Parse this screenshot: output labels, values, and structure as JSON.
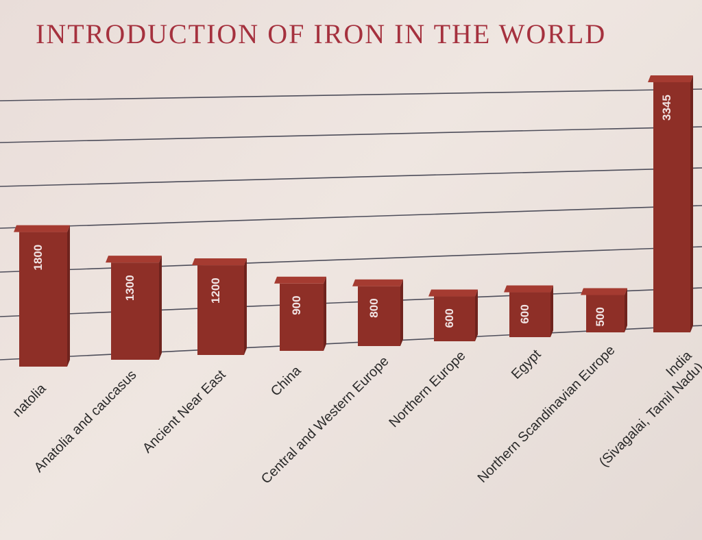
{
  "chart_data": {
    "type": "bar",
    "title": "INTRODUCTION OF IRON IN THE WORLD",
    "categories": [
      "Anatolia",
      "Anatolia and caucasus",
      "Ancient Near East",
      "China",
      "Central and Western Europe",
      "Northern Europe",
      "Egypt",
      "Northern Scandinavian Europe",
      "India\n(Sivagalai, Tamil Nadu)"
    ],
    "values": [
      1800,
      1300,
      1200,
      900,
      800,
      600,
      600,
      500,
      3345
    ],
    "value_labels": [
      "1800",
      "1300",
      "1200",
      "900",
      "800",
      "600",
      "600",
      "500",
      "3345"
    ],
    "category_labels_visible": [
      "natolia",
      "Anatolia and caucasus",
      "Ancient Near East",
      "China",
      "Central and Western Europe",
      "Northern Europe",
      "Egypt",
      "Northern Scandinavian Europe",
      "India\n(Sivagalai, Tamil Nadu)"
    ],
    "ylim": [
      0,
      3345
    ],
    "grid": true,
    "colors": {
      "bar_front": "#8e2f27",
      "bar_side": "#6f231d",
      "bar_top": "#a53b31",
      "grid": "#4d4d5a",
      "title": "#a5313e"
    }
  }
}
